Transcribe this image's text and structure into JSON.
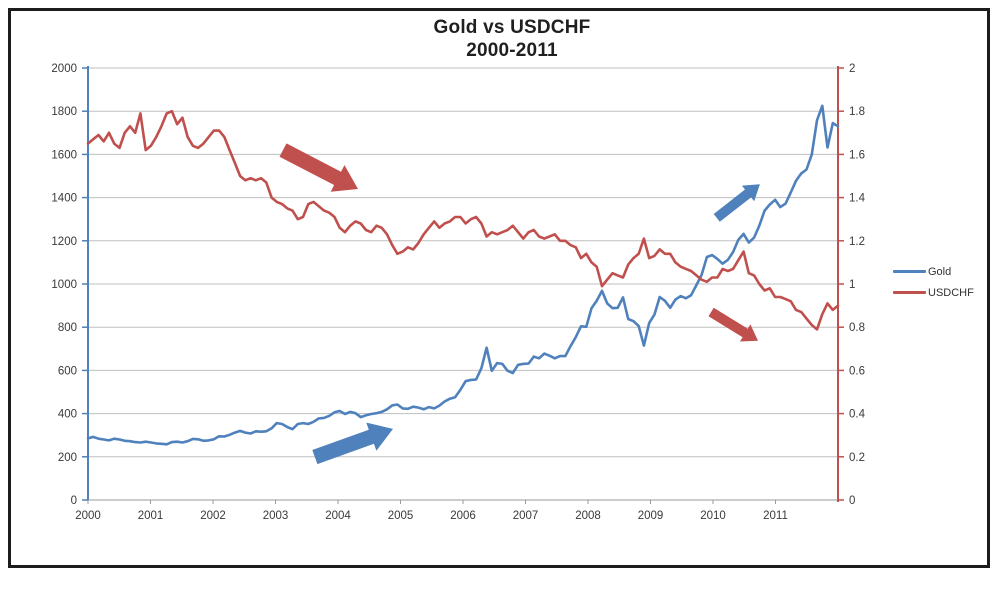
{
  "title": {
    "line1": "Gold vs USDCHF",
    "line2": "2000-2011"
  },
  "legend": {
    "position": "right",
    "items": [
      {
        "label": "Gold",
        "color": "#4F81BD"
      },
      {
        "label": "USDCHF",
        "color": "#C0504D"
      }
    ]
  },
  "colors": {
    "gold": "#4F81BD",
    "usdchf": "#C0504D",
    "gridline": "#BFBFBF",
    "axis_text": "#3a3a3a",
    "x_axis_line": "#9a9a9a",
    "frame_border": "#1c1c1c"
  },
  "chart_data": {
    "type": "line",
    "title": "Gold vs USDCHF",
    "subtitle": "2000-2011",
    "x_mode": "monthly",
    "x_start_year": 2000,
    "x_end_year": 2011,
    "x_tick_labels": [
      "2000",
      "2001",
      "2002",
      "2003",
      "2004",
      "2005",
      "2006",
      "2007",
      "2008",
      "2009",
      "2010",
      "2011"
    ],
    "grid": "horizontal",
    "legend_position": "right",
    "left_axis": {
      "min": 0,
      "max": 2000,
      "step": 200,
      "color": "#4F81BD",
      "ticks": [
        "0",
        "200",
        "400",
        "600",
        "800",
        "1000",
        "1200",
        "1400",
        "1600",
        "1800",
        "2000"
      ]
    },
    "right_axis": {
      "min": 0,
      "max": 2,
      "step": 0.2,
      "color": "#C0504D",
      "ticks": [
        "0",
        "0.2",
        "0.4",
        "0.6",
        "0.8",
        "1",
        "1.2",
        "1.4",
        "1.6",
        "1.8",
        "2"
      ]
    },
    "series": [
      {
        "name": "Gold",
        "axis": "left",
        "color": "#4F81BD",
        "values": [
          285,
          292,
          284,
          280,
          276,
          284,
          280,
          274,
          272,
          268,
          266,
          270,
          266,
          262,
          260,
          258,
          268,
          270,
          266,
          272,
          283,
          281,
          274,
          276,
          281,
          295,
          294,
          302,
          312,
          320,
          312,
          308,
          318,
          316,
          318,
          332,
          356,
          352,
          338,
          328,
          352,
          356,
          352,
          362,
          378,
          380,
          390,
          406,
          412,
          398,
          408,
          402,
          384,
          392,
          398,
          402,
          408,
          420,
          438,
          442,
          424,
          422,
          432,
          428,
          420,
          430,
          424,
          437,
          456,
          469,
          476,
          510,
          550,
          556,
          558,
          610,
          705,
          598,
          634,
          630,
          598,
          588,
          626,
          630,
          632,
          664,
          656,
          678,
          668,
          656,
          666,
          666,
          712,
          754,
          804,
          802,
          888,
          922,
          968,
          910,
          888,
          890,
          938,
          838,
          828,
          805,
          715,
          820,
          858,
          940,
          922,
          890,
          928,
          944,
          934,
          948,
          995,
          1042,
          1125,
          1134,
          1116,
          1094,
          1112,
          1148,
          1204,
          1232,
          1192,
          1215,
          1270,
          1340,
          1368,
          1390,
          1356,
          1372,
          1424,
          1478,
          1512,
          1530,
          1600,
          1758,
          1825,
          1632,
          1745,
          1730
        ]
      },
      {
        "name": "USDCHF",
        "axis": "right",
        "color": "#C0504D",
        "values": [
          1.65,
          1.67,
          1.69,
          1.66,
          1.7,
          1.65,
          1.63,
          1.7,
          1.73,
          1.7,
          1.79,
          1.62,
          1.64,
          1.68,
          1.73,
          1.79,
          1.8,
          1.74,
          1.77,
          1.68,
          1.64,
          1.63,
          1.65,
          1.68,
          1.71,
          1.71,
          1.68,
          1.62,
          1.56,
          1.5,
          1.48,
          1.49,
          1.48,
          1.49,
          1.47,
          1.4,
          1.38,
          1.37,
          1.35,
          1.34,
          1.3,
          1.31,
          1.37,
          1.38,
          1.36,
          1.34,
          1.33,
          1.31,
          1.26,
          1.24,
          1.27,
          1.29,
          1.28,
          1.25,
          1.24,
          1.27,
          1.26,
          1.23,
          1.18,
          1.14,
          1.15,
          1.17,
          1.16,
          1.19,
          1.23,
          1.26,
          1.29,
          1.26,
          1.28,
          1.29,
          1.31,
          1.31,
          1.28,
          1.3,
          1.31,
          1.28,
          1.22,
          1.24,
          1.23,
          1.24,
          1.25,
          1.27,
          1.24,
          1.21,
          1.24,
          1.25,
          1.22,
          1.21,
          1.22,
          1.23,
          1.2,
          1.2,
          1.18,
          1.17,
          1.12,
          1.14,
          1.1,
          1.08,
          0.99,
          1.02,
          1.05,
          1.04,
          1.03,
          1.09,
          1.12,
          1.14,
          1.21,
          1.12,
          1.13,
          1.16,
          1.14,
          1.14,
          1.1,
          1.08,
          1.07,
          1.06,
          1.04,
          1.02,
          1.01,
          1.03,
          1.03,
          1.07,
          1.06,
          1.07,
          1.11,
          1.15,
          1.05,
          1.04,
          1.0,
          0.97,
          0.98,
          0.94,
          0.94,
          0.93,
          0.92,
          0.88,
          0.87,
          0.84,
          0.81,
          0.79,
          0.86,
          0.91,
          0.88,
          0.9
        ]
      }
    ],
    "annotations": [
      {
        "id": "usdchf-downtrend-arrow",
        "shape": "block-arrow",
        "color": "#C0504D",
        "size": "large",
        "axis": "right",
        "from": {
          "year": 2003.12,
          "value": 1.62
        },
        "to": {
          "year": 2004.32,
          "value": 1.44
        },
        "direction": "down-right"
      },
      {
        "id": "gold-uptrend-arrow",
        "shape": "block-arrow",
        "color": "#4F81BD",
        "size": "large",
        "axis": "left",
        "from": {
          "year": 2003.63,
          "value": 199
        },
        "to": {
          "year": 2004.88,
          "value": 329
        },
        "direction": "up-right"
      },
      {
        "id": "gold-late-uptrend-arrow",
        "shape": "block-arrow",
        "color": "#4F81BD",
        "size": "small",
        "axis": "left",
        "from": {
          "year": 2010.06,
          "value": 1306
        },
        "to": {
          "year": 2010.75,
          "value": 1462
        },
        "direction": "up-right"
      },
      {
        "id": "usdchf-late-downtrend-arrow",
        "shape": "block-arrow",
        "color": "#C0504D",
        "size": "small",
        "axis": "right",
        "from": {
          "year": 2009.97,
          "value": 0.87
        },
        "to": {
          "year": 2010.72,
          "value": 0.737
        },
        "direction": "down-right"
      }
    ]
  }
}
